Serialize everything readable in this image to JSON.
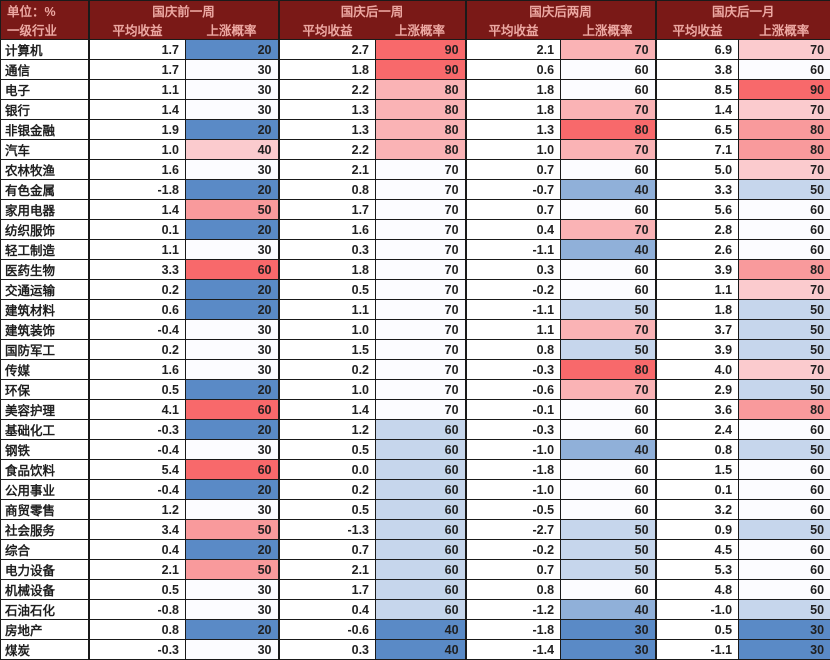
{
  "colors": {
    "header_bg": "#7a1917",
    "header_text": "#eca8a2",
    "grid": "#1a1a1a",
    "value_text": "#1f1f1f"
  },
  "chart_data": {
    "type": "table",
    "unit": "单位：%",
    "row_header": "一级行业",
    "column_groups": [
      "国庆前一周",
      "国庆后一周",
      "国庆后两周",
      "国庆后一月"
    ],
    "sub_columns": [
      "平均收益",
      "上涨概率"
    ],
    "heatmap": {
      "min_color": "#5a8ac6",
      "mid_color": "#fcfcff",
      "max_color": "#f8696b",
      "scales": [
        {
          "min": 20,
          "mid": 30,
          "max": 60
        },
        {
          "min": 40,
          "mid": 70,
          "max": 90
        },
        {
          "min": 30,
          "mid": 60,
          "max": 80
        },
        {
          "min": 30,
          "mid": 60,
          "max": 90
        }
      ]
    },
    "rows": [
      {
        "industry": "计算机",
        "avg_return": [
          1.7,
          2.7,
          2.1,
          6.9
        ],
        "win_rate": [
          20,
          90,
          70,
          70
        ]
      },
      {
        "industry": "通信",
        "avg_return": [
          1.7,
          1.8,
          0.6,
          3.8
        ],
        "win_rate": [
          30,
          90,
          60,
          60
        ]
      },
      {
        "industry": "电子",
        "avg_return": [
          1.1,
          2.2,
          1.8,
          8.5
        ],
        "win_rate": [
          30,
          80,
          60,
          90
        ]
      },
      {
        "industry": "银行",
        "avg_return": [
          1.4,
          1.3,
          1.8,
          1.4
        ],
        "win_rate": [
          30,
          80,
          70,
          70
        ]
      },
      {
        "industry": "非银金融",
        "avg_return": [
          1.9,
          1.3,
          1.3,
          6.5
        ],
        "win_rate": [
          20,
          80,
          80,
          80
        ]
      },
      {
        "industry": "汽车",
        "avg_return": [
          1.0,
          2.2,
          1.0,
          7.1
        ],
        "win_rate": [
          40,
          80,
          70,
          80
        ]
      },
      {
        "industry": "农林牧渔",
        "avg_return": [
          1.6,
          2.1,
          0.7,
          5.0
        ],
        "win_rate": [
          30,
          70,
          60,
          70
        ]
      },
      {
        "industry": "有色金属",
        "avg_return": [
          -1.8,
          0.8,
          -0.7,
          3.3
        ],
        "win_rate": [
          20,
          70,
          40,
          50
        ]
      },
      {
        "industry": "家用电器",
        "avg_return": [
          1.4,
          1.7,
          0.7,
          5.6
        ],
        "win_rate": [
          50,
          70,
          60,
          60
        ]
      },
      {
        "industry": "纺织服饰",
        "avg_return": [
          0.1,
          1.6,
          0.4,
          2.8
        ],
        "win_rate": [
          20,
          70,
          70,
          60
        ]
      },
      {
        "industry": "轻工制造",
        "avg_return": [
          1.1,
          0.3,
          -1.1,
          2.6
        ],
        "win_rate": [
          30,
          70,
          40,
          60
        ]
      },
      {
        "industry": "医药生物",
        "avg_return": [
          3.3,
          1.8,
          0.3,
          3.9
        ],
        "win_rate": [
          60,
          70,
          60,
          80
        ]
      },
      {
        "industry": "交通运输",
        "avg_return": [
          0.2,
          0.5,
          -0.2,
          1.1
        ],
        "win_rate": [
          20,
          70,
          60,
          70
        ]
      },
      {
        "industry": "建筑材料",
        "avg_return": [
          0.6,
          1.1,
          -1.1,
          1.8
        ],
        "win_rate": [
          20,
          70,
          50,
          50
        ]
      },
      {
        "industry": "建筑装饰",
        "avg_return": [
          -0.4,
          1.0,
          1.1,
          3.7
        ],
        "win_rate": [
          30,
          70,
          70,
          50
        ]
      },
      {
        "industry": "国防军工",
        "avg_return": [
          0.2,
          1.5,
          0.8,
          3.9
        ],
        "win_rate": [
          30,
          70,
          50,
          50
        ]
      },
      {
        "industry": "传媒",
        "avg_return": [
          1.6,
          0.2,
          -0.3,
          4.0
        ],
        "win_rate": [
          30,
          70,
          80,
          70
        ]
      },
      {
        "industry": "环保",
        "avg_return": [
          0.5,
          1.0,
          -0.6,
          2.9
        ],
        "win_rate": [
          20,
          70,
          70,
          50
        ]
      },
      {
        "industry": "美容护理",
        "avg_return": [
          4.1,
          1.4,
          -0.1,
          3.6
        ],
        "win_rate": [
          60,
          70,
          60,
          80
        ]
      },
      {
        "industry": "基础化工",
        "avg_return": [
          -0.3,
          1.2,
          -0.3,
          2.4
        ],
        "win_rate": [
          20,
          60,
          60,
          60
        ]
      },
      {
        "industry": "钢铁",
        "avg_return": [
          -0.4,
          0.5,
          -1.0,
          0.8
        ],
        "win_rate": [
          30,
          60,
          40,
          50
        ]
      },
      {
        "industry": "食品饮料",
        "avg_return": [
          5.4,
          0.0,
          -1.8,
          1.5
        ],
        "win_rate": [
          60,
          60,
          60,
          60
        ]
      },
      {
        "industry": "公用事业",
        "avg_return": [
          -0.4,
          0.2,
          -1.0,
          0.1
        ],
        "win_rate": [
          20,
          60,
          60,
          60
        ]
      },
      {
        "industry": "商贸零售",
        "avg_return": [
          1.2,
          0.5,
          -0.5,
          3.2
        ],
        "win_rate": [
          30,
          60,
          60,
          60
        ]
      },
      {
        "industry": "社会服务",
        "avg_return": [
          3.4,
          -1.3,
          -2.7,
          0.9
        ],
        "win_rate": [
          50,
          60,
          50,
          50
        ]
      },
      {
        "industry": "综合",
        "avg_return": [
          0.4,
          0.7,
          -0.2,
          4.5
        ],
        "win_rate": [
          20,
          60,
          50,
          60
        ]
      },
      {
        "industry": "电力设备",
        "avg_return": [
          2.1,
          2.1,
          0.7,
          5.3
        ],
        "win_rate": [
          50,
          60,
          50,
          60
        ]
      },
      {
        "industry": "机械设备",
        "avg_return": [
          0.5,
          1.7,
          0.8,
          4.8
        ],
        "win_rate": [
          30,
          60,
          60,
          60
        ]
      },
      {
        "industry": "石油石化",
        "avg_return": [
          -0.8,
          0.4,
          -1.2,
          -1.0
        ],
        "win_rate": [
          30,
          60,
          40,
          50
        ]
      },
      {
        "industry": "房地产",
        "avg_return": [
          0.8,
          -0.6,
          -1.8,
          0.5
        ],
        "win_rate": [
          20,
          40,
          30,
          30
        ]
      },
      {
        "industry": "煤炭",
        "avg_return": [
          -0.3,
          0.3,
          -1.4,
          -1.1
        ],
        "win_rate": [
          30,
          40,
          30,
          30
        ]
      }
    ]
  }
}
